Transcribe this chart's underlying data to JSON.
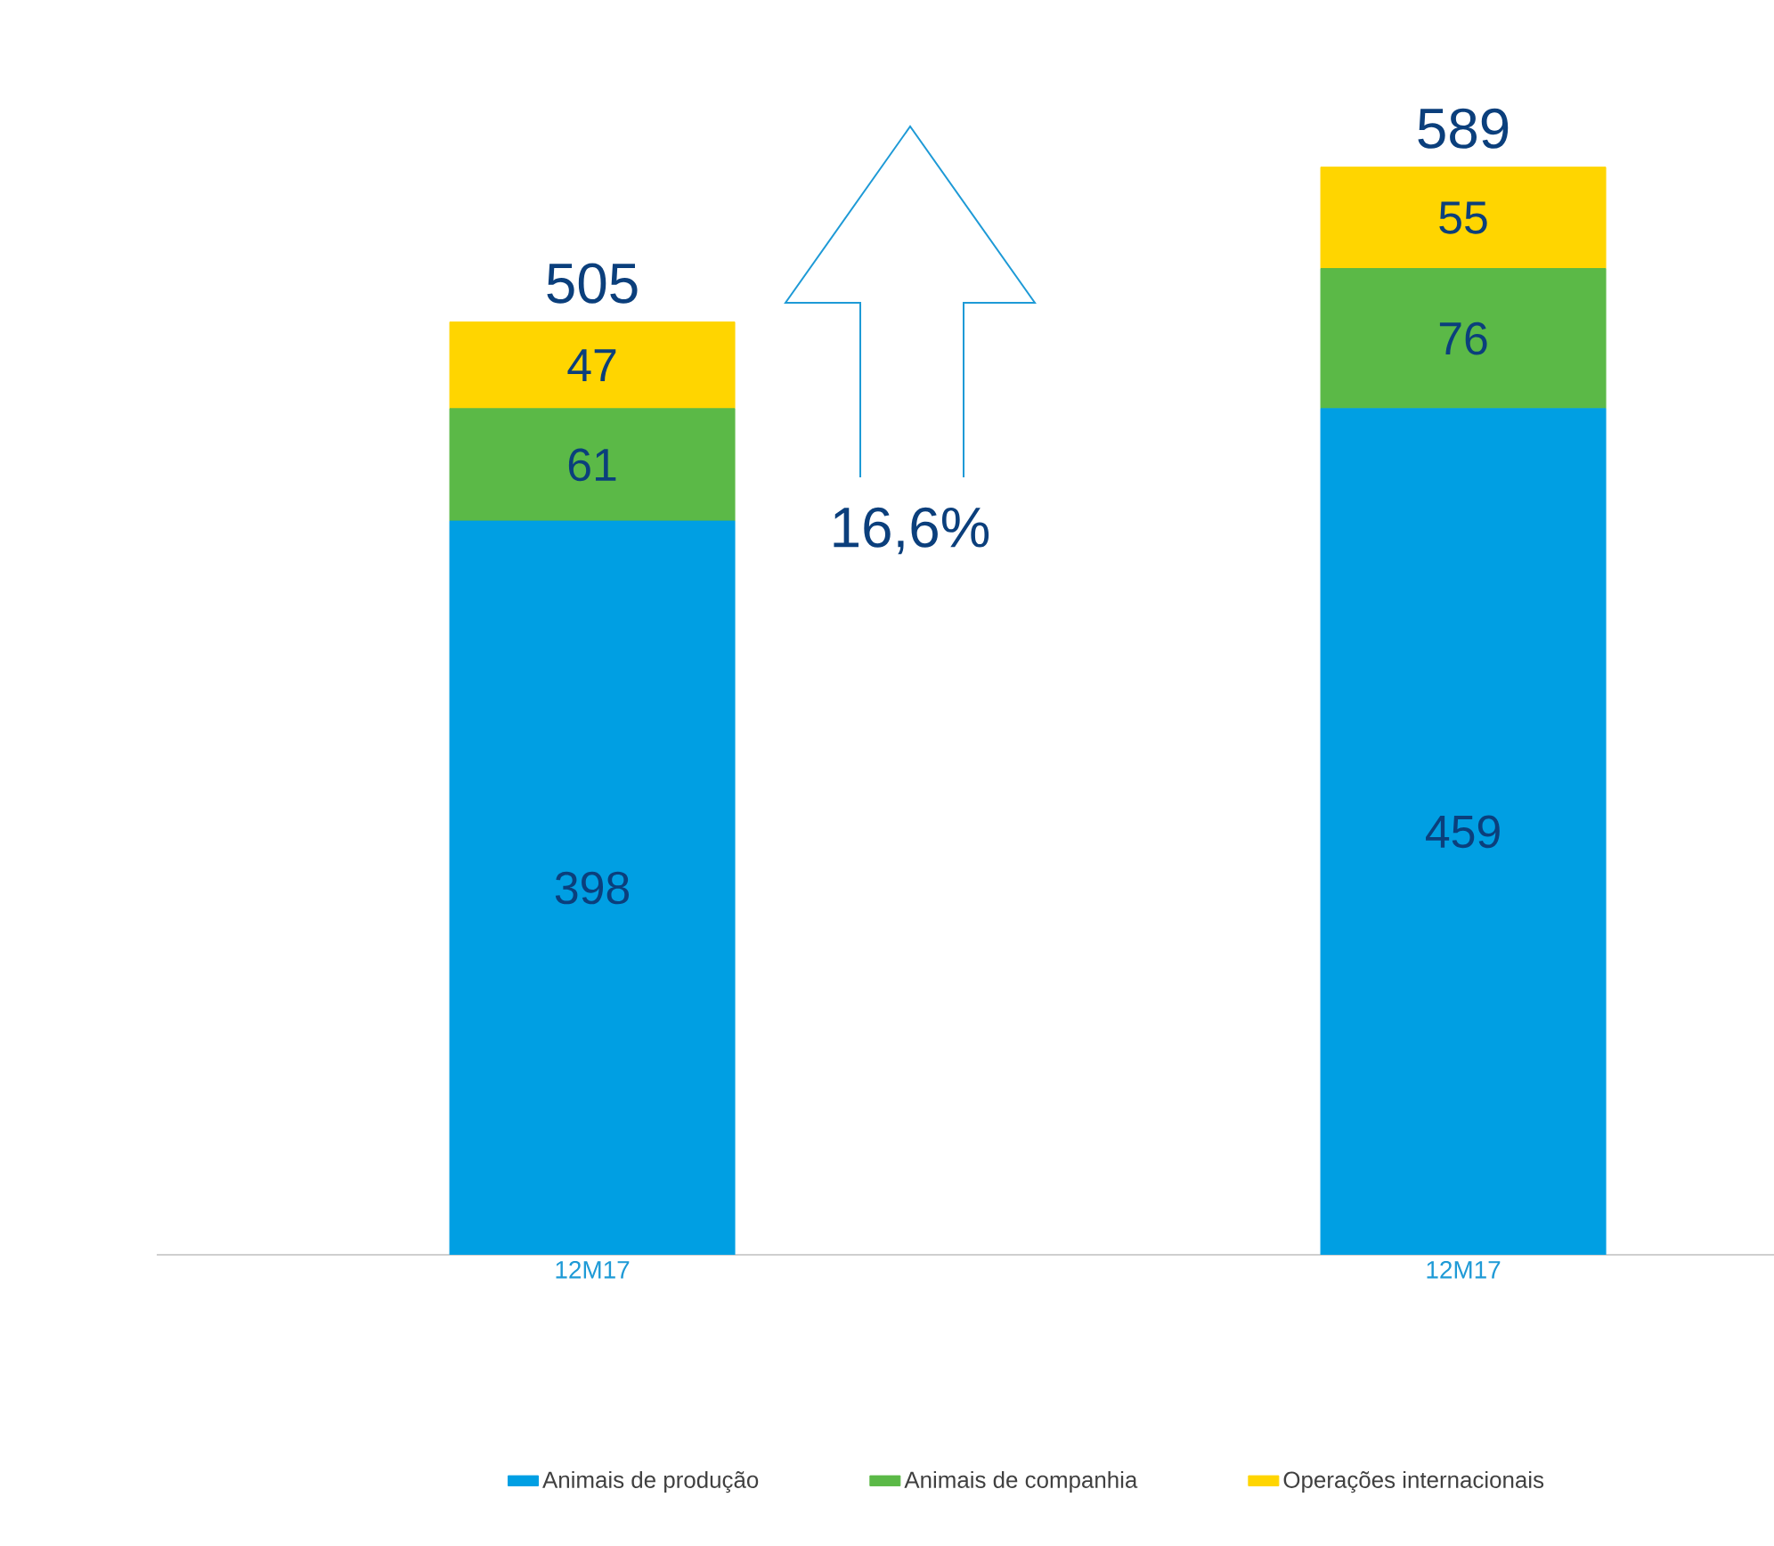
{
  "chart_data": {
    "type": "bar",
    "stacked": true,
    "categories": [
      "12M17",
      "12M17"
    ],
    "series": [
      {
        "name": "Animais de produção",
        "color": "#009fe3",
        "values": [
          398,
          459
        ]
      },
      {
        "name": "Animais de companhia",
        "color": "#5bb947",
        "values": [
          61,
          76
        ]
      },
      {
        "name": "Operações internacionais",
        "color": "#ffd500",
        "values": [
          47,
          55
        ]
      }
    ],
    "data_labels": true,
    "totals": [
      "505",
      "589"
    ],
    "legend": "bottom",
    "annotations": [
      "16,6%"
    ]
  }
}
